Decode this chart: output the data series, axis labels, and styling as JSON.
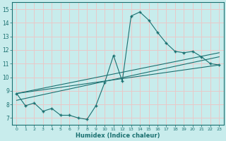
{
  "title": "",
  "xlabel": "Humidex (Indice chaleur)",
  "ylabel": "",
  "bg_color": "#c8ecec",
  "grid_color": "#e8c8c8",
  "line_color": "#1a7070",
  "xlim": [
    -0.5,
    23.5
  ],
  "ylim": [
    6.5,
    15.5
  ],
  "xticks": [
    0,
    1,
    2,
    3,
    4,
    5,
    6,
    7,
    8,
    9,
    10,
    11,
    12,
    13,
    14,
    15,
    16,
    17,
    18,
    19,
    20,
    21,
    22,
    23
  ],
  "yticks": [
    7,
    8,
    9,
    10,
    11,
    12,
    13,
    14,
    15
  ],
  "line1_x": [
    0,
    1,
    2,
    3,
    4,
    5,
    6,
    7,
    8,
    9,
    10,
    11,
    12,
    13,
    14,
    15,
    16,
    17,
    18,
    19,
    20,
    21,
    22,
    23
  ],
  "line1_y": [
    8.8,
    7.9,
    8.1,
    7.5,
    7.7,
    7.2,
    7.2,
    7.0,
    6.9,
    7.9,
    9.6,
    11.6,
    9.7,
    14.5,
    14.8,
    14.2,
    13.3,
    12.5,
    11.9,
    11.8,
    11.9,
    11.5,
    11.0,
    10.9
  ],
  "line2_x": [
    0,
    23
  ],
  "line2_y": [
    8.8,
    10.9
  ],
  "line3_x": [
    0,
    23
  ],
  "line3_y": [
    8.8,
    11.8
  ],
  "line4_x": [
    0,
    23
  ],
  "line4_y": [
    8.3,
    11.5
  ]
}
